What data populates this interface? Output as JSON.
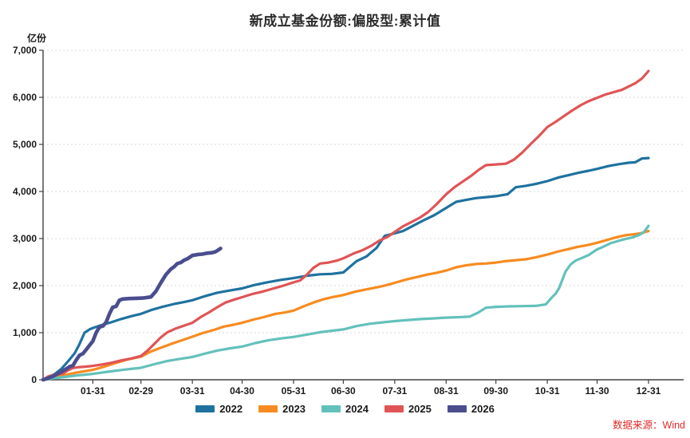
{
  "title": "新成立基金份额:偏股型:累计值",
  "source": "数据来源：Wind",
  "colors": {
    "grid": "#d9d9d9",
    "axis": "#404040",
    "tick_text": "#1a1a1a",
    "title_text": "#2b2b2b",
    "source_text": "#e02a2a",
    "background": "#ffffff"
  },
  "chart_data": {
    "type": "line",
    "title": "新成立基金份额:偏股型:累计值",
    "xlabel": "",
    "ylabel": "亿份",
    "ylim": [
      0,
      7000
    ],
    "grid": "horizontal-dashed",
    "legend_position": "bottom-center",
    "y_ticks": [
      0,
      1000,
      2000,
      3000,
      4000,
      5000,
      6000,
      7000
    ],
    "y_tick_labels": [
      "0",
      "1,000",
      "2,000",
      "3,000",
      "4,000",
      "5,000",
      "6,000",
      "7,000"
    ],
    "x_ticks": [
      {
        "day": 31,
        "label": "01-31"
      },
      {
        "day": 60,
        "label": "02-29"
      },
      {
        "day": 91,
        "label": "03-31"
      },
      {
        "day": 121,
        "label": "04-30"
      },
      {
        "day": 152,
        "label": "05-31"
      },
      {
        "day": 182,
        "label": "06-30"
      },
      {
        "day": 213,
        "label": "07-31"
      },
      {
        "day": 244,
        "label": "08-31"
      },
      {
        "day": 274,
        "label": "09-30"
      },
      {
        "day": 305,
        "label": "10-31"
      },
      {
        "day": 335,
        "label": "11-30"
      },
      {
        "day": 366,
        "label": "12-31"
      }
    ],
    "series": [
      {
        "name": "2022",
        "color": "#1F729F",
        "width": 3.2,
        "points": [
          [
            1,
            0
          ],
          [
            4,
            40
          ],
          [
            8,
            120
          ],
          [
            12,
            230
          ],
          [
            16,
            390
          ],
          [
            20,
            560
          ],
          [
            23,
            760
          ],
          [
            26,
            1000
          ],
          [
            29,
            1070
          ],
          [
            31,
            1100
          ],
          [
            36,
            1160
          ],
          [
            42,
            1220
          ],
          [
            48,
            1290
          ],
          [
            54,
            1350
          ],
          [
            60,
            1400
          ],
          [
            66,
            1480
          ],
          [
            72,
            1540
          ],
          [
            80,
            1610
          ],
          [
            86,
            1650
          ],
          [
            91,
            1690
          ],
          [
            98,
            1770
          ],
          [
            106,
            1850
          ],
          [
            114,
            1900
          ],
          [
            121,
            1940
          ],
          [
            128,
            2010
          ],
          [
            136,
            2070
          ],
          [
            144,
            2120
          ],
          [
            152,
            2160
          ],
          [
            160,
            2210
          ],
          [
            168,
            2240
          ],
          [
            175,
            2250
          ],
          [
            182,
            2280
          ],
          [
            186,
            2400
          ],
          [
            190,
            2520
          ],
          [
            196,
            2620
          ],
          [
            202,
            2800
          ],
          [
            207,
            3060
          ],
          [
            213,
            3110
          ],
          [
            218,
            3160
          ],
          [
            224,
            3270
          ],
          [
            230,
            3380
          ],
          [
            237,
            3500
          ],
          [
            244,
            3650
          ],
          [
            250,
            3780
          ],
          [
            256,
            3820
          ],
          [
            262,
            3860
          ],
          [
            268,
            3880
          ],
          [
            274,
            3900
          ],
          [
            281,
            3940
          ],
          [
            286,
            4090
          ],
          [
            292,
            4120
          ],
          [
            298,
            4160
          ],
          [
            305,
            4220
          ],
          [
            312,
            4300
          ],
          [
            318,
            4350
          ],
          [
            324,
            4400
          ],
          [
            330,
            4440
          ],
          [
            335,
            4480
          ],
          [
            342,
            4540
          ],
          [
            348,
            4580
          ],
          [
            354,
            4610
          ],
          [
            358,
            4620
          ],
          [
            362,
            4700
          ],
          [
            366,
            4710
          ]
        ]
      },
      {
        "name": "2023",
        "color": "#F78B1F",
        "width": 3.2,
        "points": [
          [
            1,
            0
          ],
          [
            6,
            30
          ],
          [
            12,
            80
          ],
          [
            18,
            130
          ],
          [
            24,
            170
          ],
          [
            31,
            210
          ],
          [
            38,
            280
          ],
          [
            45,
            360
          ],
          [
            52,
            430
          ],
          [
            60,
            490
          ],
          [
            66,
            600
          ],
          [
            72,
            680
          ],
          [
            78,
            760
          ],
          [
            84,
            830
          ],
          [
            91,
            915
          ],
          [
            97,
            990
          ],
          [
            104,
            1060
          ],
          [
            110,
            1130
          ],
          [
            116,
            1170
          ],
          [
            121,
            1210
          ],
          [
            128,
            1280
          ],
          [
            134,
            1330
          ],
          [
            141,
            1400
          ],
          [
            147,
            1430
          ],
          [
            152,
            1470
          ],
          [
            158,
            1560
          ],
          [
            164,
            1640
          ],
          [
            170,
            1710
          ],
          [
            176,
            1760
          ],
          [
            182,
            1800
          ],
          [
            189,
            1870
          ],
          [
            196,
            1920
          ],
          [
            203,
            1970
          ],
          [
            208,
            2010
          ],
          [
            213,
            2060
          ],
          [
            220,
            2130
          ],
          [
            226,
            2180
          ],
          [
            232,
            2230
          ],
          [
            238,
            2270
          ],
          [
            244,
            2320
          ],
          [
            250,
            2390
          ],
          [
            256,
            2430
          ],
          [
            262,
            2460
          ],
          [
            268,
            2470
          ],
          [
            274,
            2490
          ],
          [
            280,
            2520
          ],
          [
            286,
            2540
          ],
          [
            292,
            2560
          ],
          [
            298,
            2600
          ],
          [
            305,
            2660
          ],
          [
            311,
            2720
          ],
          [
            317,
            2770
          ],
          [
            323,
            2820
          ],
          [
            329,
            2860
          ],
          [
            335,
            2910
          ],
          [
            341,
            2970
          ],
          [
            347,
            3030
          ],
          [
            352,
            3070
          ],
          [
            357,
            3090
          ],
          [
            361,
            3110
          ],
          [
            366,
            3160
          ]
        ]
      },
      {
        "name": "2024",
        "color": "#63C1BB",
        "width": 3.2,
        "points": [
          [
            1,
            0
          ],
          [
            7,
            30
          ],
          [
            14,
            60
          ],
          [
            21,
            90
          ],
          [
            31,
            125
          ],
          [
            40,
            170
          ],
          [
            50,
            215
          ],
          [
            60,
            255
          ],
          [
            68,
            330
          ],
          [
            76,
            400
          ],
          [
            84,
            445
          ],
          [
            91,
            485
          ],
          [
            98,
            550
          ],
          [
            106,
            620
          ],
          [
            114,
            670
          ],
          [
            121,
            705
          ],
          [
            129,
            780
          ],
          [
            137,
            840
          ],
          [
            145,
            880
          ],
          [
            152,
            910
          ],
          [
            160,
            960
          ],
          [
            168,
            1010
          ],
          [
            175,
            1040
          ],
          [
            182,
            1070
          ],
          [
            190,
            1140
          ],
          [
            198,
            1190
          ],
          [
            206,
            1220
          ],
          [
            213,
            1245
          ],
          [
            221,
            1270
          ],
          [
            229,
            1290
          ],
          [
            237,
            1305
          ],
          [
            244,
            1320
          ],
          [
            252,
            1330
          ],
          [
            258,
            1340
          ],
          [
            263,
            1420
          ],
          [
            268,
            1530
          ],
          [
            274,
            1550
          ],
          [
            282,
            1560
          ],
          [
            290,
            1565
          ],
          [
            298,
            1570
          ],
          [
            304,
            1600
          ],
          [
            306,
            1680
          ],
          [
            308,
            1760
          ],
          [
            310,
            1830
          ],
          [
            312,
            1940
          ],
          [
            314,
            2120
          ],
          [
            316,
            2300
          ],
          [
            319,
            2450
          ],
          [
            322,
            2530
          ],
          [
            326,
            2590
          ],
          [
            330,
            2650
          ],
          [
            335,
            2770
          ],
          [
            339,
            2830
          ],
          [
            343,
            2900
          ],
          [
            348,
            2950
          ],
          [
            352,
            2990
          ],
          [
            356,
            3020
          ],
          [
            360,
            3070
          ],
          [
            363,
            3130
          ],
          [
            366,
            3270
          ]
        ]
      },
      {
        "name": "2025",
        "color": "#E05456",
        "width": 3.2,
        "points": [
          [
            1,
            0
          ],
          [
            4,
            70
          ],
          [
            7,
            100
          ],
          [
            10,
            115
          ],
          [
            13,
            130
          ],
          [
            16,
            200
          ],
          [
            19,
            250
          ],
          [
            23,
            270
          ],
          [
            27,
            280
          ],
          [
            31,
            295
          ],
          [
            36,
            320
          ],
          [
            42,
            360
          ],
          [
            48,
            410
          ],
          [
            54,
            450
          ],
          [
            60,
            505
          ],
          [
            64,
            620
          ],
          [
            68,
            760
          ],
          [
            72,
            900
          ],
          [
            76,
            1010
          ],
          [
            81,
            1090
          ],
          [
            86,
            1150
          ],
          [
            91,
            1210
          ],
          [
            96,
            1330
          ],
          [
            101,
            1430
          ],
          [
            106,
            1540
          ],
          [
            111,
            1640
          ],
          [
            116,
            1700
          ],
          [
            121,
            1755
          ],
          [
            127,
            1820
          ],
          [
            133,
            1870
          ],
          [
            139,
            1930
          ],
          [
            145,
            1990
          ],
          [
            152,
            2070
          ],
          [
            156,
            2110
          ],
          [
            160,
            2230
          ],
          [
            164,
            2380
          ],
          [
            168,
            2470
          ],
          [
            173,
            2490
          ],
          [
            178,
            2530
          ],
          [
            182,
            2580
          ],
          [
            188,
            2680
          ],
          [
            194,
            2760
          ],
          [
            199,
            2850
          ],
          [
            204,
            2960
          ],
          [
            209,
            3040
          ],
          [
            213,
            3140
          ],
          [
            218,
            3260
          ],
          [
            223,
            3350
          ],
          [
            228,
            3440
          ],
          [
            233,
            3560
          ],
          [
            238,
            3720
          ],
          [
            244,
            3940
          ],
          [
            249,
            4090
          ],
          [
            254,
            4210
          ],
          [
            259,
            4330
          ],
          [
            264,
            4470
          ],
          [
            268,
            4560
          ],
          [
            274,
            4575
          ],
          [
            280,
            4590
          ],
          [
            285,
            4680
          ],
          [
            290,
            4830
          ],
          [
            295,
            5010
          ],
          [
            300,
            5180
          ],
          [
            305,
            5370
          ],
          [
            310,
            5480
          ],
          [
            315,
            5600
          ],
          [
            320,
            5720
          ],
          [
            325,
            5830
          ],
          [
            330,
            5920
          ],
          [
            335,
            5990
          ],
          [
            340,
            6060
          ],
          [
            345,
            6110
          ],
          [
            350,
            6160
          ],
          [
            354,
            6230
          ],
          [
            358,
            6300
          ],
          [
            362,
            6400
          ],
          [
            366,
            6560
          ]
        ]
      },
      {
        "name": "2026",
        "color": "#4A4E8F",
        "width": 4.6,
        "points": [
          [
            1,
            0
          ],
          [
            3,
            20
          ],
          [
            6,
            60
          ],
          [
            9,
            110
          ],
          [
            12,
            170
          ],
          [
            15,
            230
          ],
          [
            17,
            280
          ],
          [
            19,
            300
          ],
          [
            21,
            420
          ],
          [
            23,
            520
          ],
          [
            25,
            555
          ],
          [
            27,
            640
          ],
          [
            29,
            730
          ],
          [
            31,
            820
          ],
          [
            33,
            1000
          ],
          [
            35,
            1120
          ],
          [
            37,
            1140
          ],
          [
            39,
            1220
          ],
          [
            41,
            1400
          ],
          [
            43,
            1540
          ],
          [
            45,
            1560
          ],
          [
            47,
            1690
          ],
          [
            49,
            1715
          ],
          [
            53,
            1725
          ],
          [
            57,
            1730
          ],
          [
            61,
            1735
          ],
          [
            66,
            1760
          ],
          [
            69,
            1880
          ],
          [
            72,
            2060
          ],
          [
            75,
            2230
          ],
          [
            78,
            2350
          ],
          [
            80,
            2400
          ],
          [
            82,
            2470
          ],
          [
            84,
            2490
          ],
          [
            86,
            2540
          ],
          [
            88,
            2570
          ],
          [
            91,
            2640
          ],
          [
            94,
            2660
          ],
          [
            97,
            2670
          ],
          [
            100,
            2690
          ],
          [
            103,
            2700
          ],
          [
            105,
            2720
          ],
          [
            108,
            2790
          ]
        ]
      }
    ]
  }
}
